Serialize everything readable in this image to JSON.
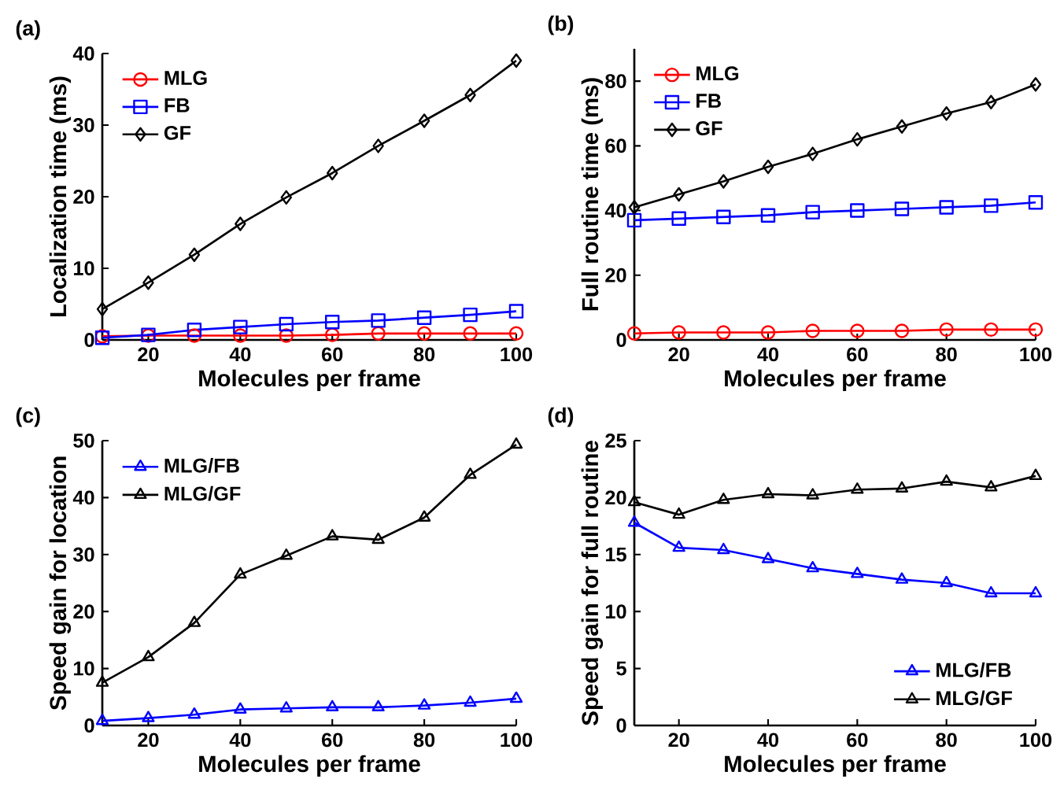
{
  "chart_data": [
    {
      "type": "line",
      "title": "(a)",
      "xlabel": "Molecules per frame",
      "ylabel": "Localization time (ms)",
      "x": [
        10,
        20,
        30,
        40,
        50,
        60,
        70,
        80,
        90,
        100
      ],
      "xlim": [
        10,
        100
      ],
      "xticks": [
        20,
        40,
        60,
        80,
        100
      ],
      "ylim": [
        0,
        40
      ],
      "yticks": [
        0,
        10,
        20,
        30,
        40
      ],
      "legend": "top left",
      "grid": false,
      "series": [
        {
          "name": "MLG",
          "color": "#ff0000",
          "marker": "circle",
          "values": [
            0.5,
            0.6,
            0.6,
            0.6,
            0.6,
            0.7,
            0.9,
            0.9,
            0.9,
            0.9
          ]
        },
        {
          "name": "FB",
          "color": "#0000ff",
          "marker": "square",
          "values": [
            0.3,
            0.7,
            1.4,
            1.8,
            2.2,
            2.5,
            2.7,
            3.1,
            3.5,
            4.0
          ]
        },
        {
          "name": "GF",
          "color": "#000000",
          "marker": "diamond",
          "values": [
            4.3,
            8.0,
            11.9,
            16.2,
            19.9,
            23.3,
            27.1,
            30.6,
            34.2,
            39.0
          ]
        }
      ]
    },
    {
      "type": "line",
      "title": "(b)",
      "xlabel": "Molecules per frame",
      "ylabel": "Full routine time (ms)",
      "x": [
        10,
        20,
        30,
        40,
        50,
        60,
        70,
        80,
        90,
        100
      ],
      "xlim": [
        10,
        100
      ],
      "xticks": [
        20,
        40,
        60,
        80,
        100
      ],
      "ylim": [
        0,
        90
      ],
      "yticks": [
        0,
        20,
        40,
        60,
        80
      ],
      "legend": "top left",
      "grid": false,
      "series": [
        {
          "name": "MLG",
          "color": "#ff0000",
          "marker": "circle",
          "values": [
            2.0,
            2.3,
            2.3,
            2.3,
            2.8,
            2.8,
            2.8,
            3.2,
            3.2,
            3.2
          ]
        },
        {
          "name": "FB",
          "color": "#0000ff",
          "marker": "square",
          "values": [
            37.0,
            37.5,
            38.0,
            38.5,
            39.5,
            40.0,
            40.5,
            41.0,
            41.5,
            42.5
          ]
        },
        {
          "name": "GF",
          "color": "#000000",
          "marker": "diamond",
          "values": [
            41.0,
            45.0,
            49.0,
            53.5,
            57.5,
            62.0,
            66.0,
            70.0,
            73.5,
            79.0
          ]
        }
      ]
    },
    {
      "type": "line",
      "title": "(c)",
      "xlabel": "Molecules per frame",
      "ylabel": "Speed gain for location",
      "x": [
        10,
        20,
        30,
        40,
        50,
        60,
        70,
        80,
        90,
        100
      ],
      "xlim": [
        10,
        100
      ],
      "xticks": [
        20,
        40,
        60,
        80,
        100
      ],
      "ylim": [
        0,
        50
      ],
      "yticks": [
        0,
        10,
        20,
        30,
        40,
        50
      ],
      "legend": "top left",
      "grid": false,
      "series": [
        {
          "name": "MLG/FB",
          "color": "#0000ff",
          "marker": "triangle",
          "values": [
            0.8,
            1.3,
            1.9,
            2.8,
            3.0,
            3.2,
            3.2,
            3.5,
            4.0,
            4.7
          ]
        },
        {
          "name": "MLG/GF",
          "color": "#000000",
          "marker": "triangle",
          "values": [
            7.5,
            12.0,
            18.0,
            26.5,
            29.8,
            33.2,
            32.6,
            36.5,
            44.0,
            49.3
          ]
        }
      ]
    },
    {
      "type": "line",
      "title": "(d)",
      "xlabel": "Molecules per frame",
      "ylabel": "Speed gain for full routine",
      "x": [
        10,
        20,
        30,
        40,
        50,
        60,
        70,
        80,
        90,
        100
      ],
      "xlim": [
        10,
        100
      ],
      "xticks": [
        20,
        40,
        60,
        80,
        100
      ],
      "ylim": [
        0,
        25
      ],
      "yticks": [
        0,
        5,
        10,
        15,
        20,
        25
      ],
      "legend": "bottom right",
      "grid": false,
      "series": [
        {
          "name": "MLG/FB",
          "color": "#0000ff",
          "marker": "triangle",
          "values": [
            17.8,
            15.6,
            15.4,
            14.6,
            13.8,
            13.3,
            12.8,
            12.5,
            11.6,
            11.6
          ]
        },
        {
          "name": "MLG/GF",
          "color": "#000000",
          "marker": "triangle",
          "values": [
            19.6,
            18.5,
            19.8,
            20.3,
            20.2,
            20.7,
            20.8,
            21.4,
            20.9,
            21.9
          ]
        }
      ]
    }
  ]
}
